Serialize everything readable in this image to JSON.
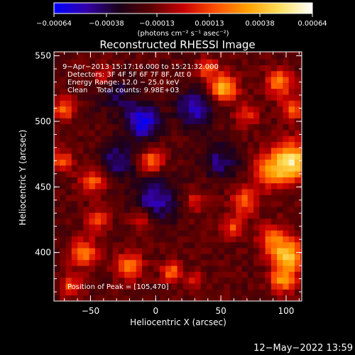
{
  "chart_data": {
    "type": "heatmap",
    "title": "Reconstructed RHESSI Image",
    "xlabel": "Heliocentric X (arcsec)",
    "ylabel": "Heliocentric Y (arcsec)",
    "xlim": [
      -78,
      112
    ],
    "ylim": [
      363,
      553
    ],
    "x_ticks": [
      {
        "value": -50,
        "label": "−50"
      },
      {
        "value": 0,
        "label": "0"
      },
      {
        "value": 50,
        "label": "50"
      },
      {
        "value": 100,
        "label": "100"
      }
    ],
    "y_ticks": [
      {
        "value": 400,
        "label": "400"
      },
      {
        "value": 450,
        "label": "450"
      },
      {
        "value": 500,
        "label": "500"
      },
      {
        "value": 550,
        "label": "550"
      }
    ],
    "colorbar": {
      "min": -0.00064,
      "max": 0.00064,
      "ticks": [
        {
          "value": -0.00064,
          "label": "−0.00064"
        },
        {
          "value": -0.00038,
          "label": "−0.00038"
        },
        {
          "value": -0.00013,
          "label": "−0.00013"
        },
        {
          "value": 0.00013,
          "label": "0.00013"
        },
        {
          "value": 0.00038,
          "label": "0.00038"
        },
        {
          "value": 0.00064,
          "label": "0.00064"
        }
      ],
      "units": "(photons cm⁻² s⁻¹ asec⁻²)",
      "colors": [
        "#0000ff",
        "#3300aa",
        "#1a001a",
        "#5a0000",
        "#c80000",
        "#ff5000",
        "#ffa000",
        "#ffe060",
        "#ffffff"
      ]
    },
    "annotations": [
      "9−Apr−2013 15:17:16.000 to 15:21:32.000",
      "Detectors: 3F 4F 5F 6F 7F 8F, Att 0",
      "Energy Range: 12.0 − 25.0 keV",
      "Clean    Total counts: 9.98E+03"
    ],
    "peak_label": "Position of Peak = [105,470]",
    "sources": [
      {
        "x": 105,
        "y": 470,
        "peak": 0.00064,
        "sigma": 10
      },
      {
        "x": 88,
        "y": 462,
        "peak": 0.0004,
        "sigma": 9
      },
      {
        "x": 102,
        "y": 398,
        "peak": 0.00055,
        "sigma": 8
      },
      {
        "x": 90,
        "y": 410,
        "peak": 0.00035,
        "sigma": 8
      },
      {
        "x": 98,
        "y": 380,
        "peak": 0.00045,
        "sigma": 7
      },
      {
        "x": 52,
        "y": 525,
        "peak": 0.00055,
        "sigma": 7
      },
      {
        "x": 40,
        "y": 540,
        "peak": 0.0003,
        "sigma": 6
      },
      {
        "x": 95,
        "y": 530,
        "peak": 0.0004,
        "sigma": 7
      },
      {
        "x": 105,
        "y": 510,
        "peak": 0.00035,
        "sigma": 6
      },
      {
        "x": 68,
        "y": 440,
        "peak": 0.00035,
        "sigma": 7
      },
      {
        "x": 60,
        "y": 420,
        "peak": 0.0003,
        "sigma": 6
      },
      {
        "x": 70,
        "y": 505,
        "peak": 0.00025,
        "sigma": 6
      },
      {
        "x": -3,
        "y": 470,
        "peak": 0.0004,
        "sigma": 6
      },
      {
        "x": -70,
        "y": 510,
        "peak": 0.00035,
        "sigma": 6
      },
      {
        "x": -72,
        "y": 470,
        "peak": 0.0003,
        "sigma": 6
      },
      {
        "x": -48,
        "y": 455,
        "peak": 0.00035,
        "sigma": 7
      },
      {
        "x": -55,
        "y": 400,
        "peak": 0.00045,
        "sigma": 7
      },
      {
        "x": -20,
        "y": 390,
        "peak": 0.0004,
        "sigma": 7
      },
      {
        "x": -45,
        "y": 425,
        "peak": 0.0003,
        "sigma": 6
      },
      {
        "x": -10,
        "y": 425,
        "peak": 0.00025,
        "sigma": 6
      },
      {
        "x": 12,
        "y": 385,
        "peak": 0.0004,
        "sigma": 5
      },
      {
        "x": 30,
        "y": 380,
        "peak": 0.0002,
        "sigma": 5
      },
      {
        "x": -65,
        "y": 375,
        "peak": 0.0003,
        "sigma": 6
      },
      {
        "x": -40,
        "y": 535,
        "peak": 0.0002,
        "sigma": 6
      },
      {
        "x": 30,
        "y": 440,
        "peak": 0.0002,
        "sigma": 6
      },
      {
        "x": -10,
        "y": 500,
        "peak": -0.00045,
        "sigma": 9
      },
      {
        "x": 30,
        "y": 510,
        "peak": -0.00035,
        "sigma": 10
      },
      {
        "x": 0,
        "y": 440,
        "peak": -0.0003,
        "sigma": 12
      },
      {
        "x": -30,
        "y": 470,
        "peak": -0.00025,
        "sigma": 10
      },
      {
        "x": 50,
        "y": 470,
        "peak": -0.00025,
        "sigma": 10
      },
      {
        "x": -30,
        "y": 520,
        "peak": -0.0002,
        "sigma": 10
      }
    ],
    "background": -0.00017
  },
  "footer": {
    "timestamp": "12−May−2022 13:59"
  }
}
